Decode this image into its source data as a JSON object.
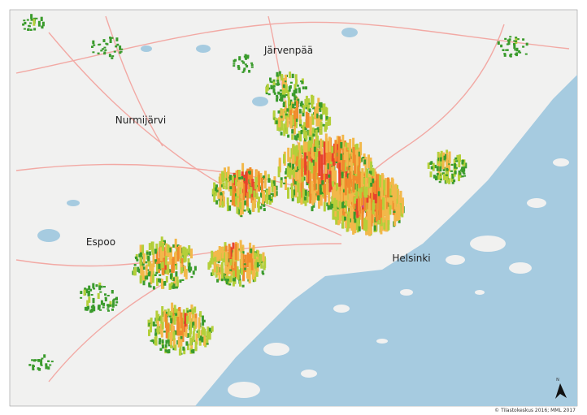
{
  "map": {
    "places": [
      "Järvenpää",
      "Nurmijärvi",
      "Espoo",
      "Helsinki"
    ],
    "credit": "© Tilastokeskus 2016; MML 2017",
    "north": "N"
  }
}
